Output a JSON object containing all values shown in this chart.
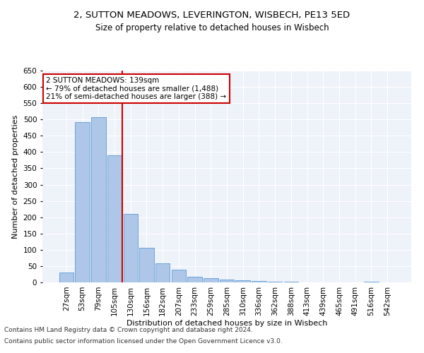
{
  "title1": "2, SUTTON MEADOWS, LEVERINGTON, WISBECH, PE13 5ED",
  "title2": "Size of property relative to detached houses in Wisbech",
  "xlabel": "Distribution of detached houses by size in Wisbech",
  "ylabel": "Number of detached properties",
  "footer1": "Contains HM Land Registry data © Crown copyright and database right 2024.",
  "footer2": "Contains public sector information licensed under the Open Government Licence v3.0.",
  "categories": [
    "27sqm",
    "53sqm",
    "79sqm",
    "105sqm",
    "130sqm",
    "156sqm",
    "182sqm",
    "207sqm",
    "233sqm",
    "259sqm",
    "285sqm",
    "310sqm",
    "336sqm",
    "362sqm",
    "388sqm",
    "413sqm",
    "439sqm",
    "465sqm",
    "491sqm",
    "516sqm",
    "542sqm"
  ],
  "values": [
    30,
    492,
    506,
    390,
    210,
    107,
    59,
    40,
    18,
    13,
    9,
    6,
    5,
    3,
    2,
    1,
    0.5,
    0.5,
    0,
    2,
    1
  ],
  "bar_color": "#aec6e8",
  "bar_edge_color": "#5b9bd5",
  "property_line_color": "#cc0000",
  "annotation_line1": "2 SUTTON MEADOWS: 139sqm",
  "annotation_line2": "← 79% of detached houses are smaller (1,488)",
  "annotation_line3": "21% of semi-detached houses are larger (388) →",
  "annotation_box_color": "white",
  "annotation_box_edge": "#cc0000",
  "ylim": [
    0,
    650
  ],
  "yticks": [
    0,
    50,
    100,
    150,
    200,
    250,
    300,
    350,
    400,
    450,
    500,
    550,
    600,
    650
  ],
  "bg_color": "#eef2f9",
  "grid_color": "#ffffff",
  "title1_fontsize": 9.5,
  "title2_fontsize": 8.5,
  "xlabel_fontsize": 8,
  "ylabel_fontsize": 8,
  "tick_fontsize": 7.5,
  "annot_fontsize": 7.5,
  "footer_fontsize": 6.5
}
